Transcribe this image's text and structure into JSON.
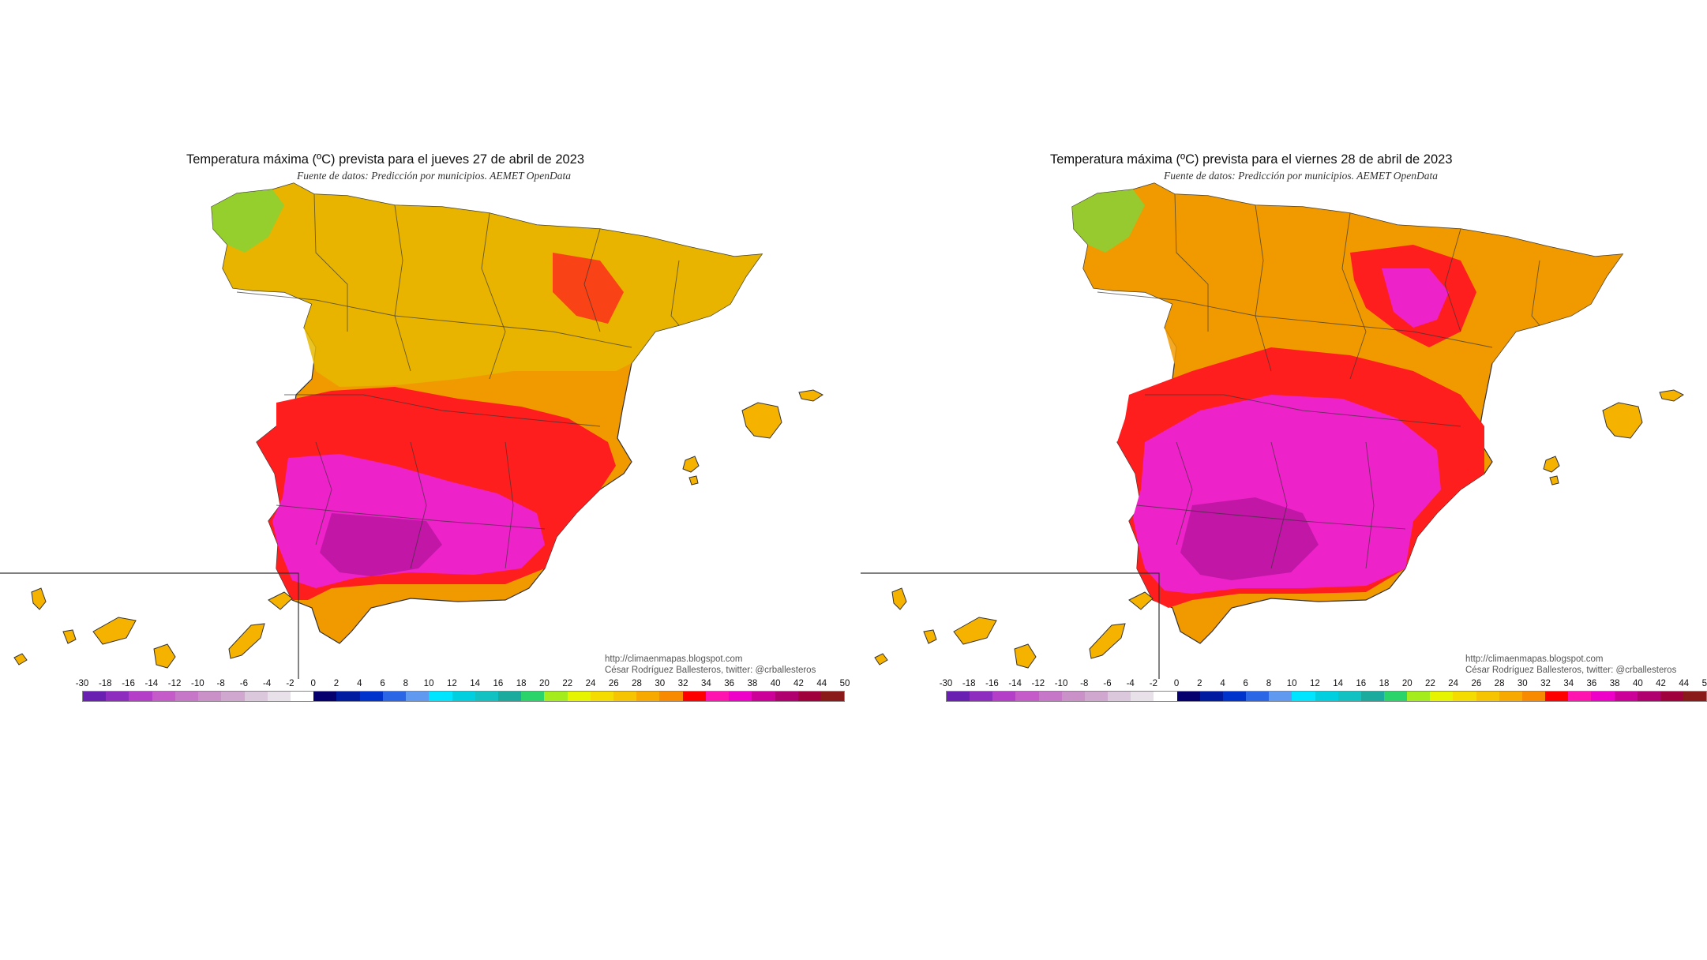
{
  "panels": [
    {
      "title": "Temperatura máxima (ºC) prevista para el jueves 27 de abril de 2023",
      "subtitle": "Fuente de datos: Predicción por municipios. AEMET OpenData",
      "credit_url": "http://climaenmapas.blogspot.com",
      "credit_author": "César Rodríguez Ballesteros, twitter: @crballesteros",
      "day": "jueves 27 de abril de 2023"
    },
    {
      "title": "Temperatura máxima (ºC) prevista para el viernes 28 de abril de 2023",
      "subtitle": "Fuente de datos: Predicción por municipios. AEMET OpenData",
      "credit_url": "http://climaenmapas.blogspot.com",
      "credit_author": "César Rodríguez Ballesteros, twitter: @crballesteros",
      "day": "viernes 28 de abril de 2023"
    }
  ],
  "legend": {
    "unit": "ºC",
    "tick_labels": [
      "-30",
      "-18",
      "-16",
      "-14",
      "-12",
      "-10",
      "-8",
      "-6",
      "-4",
      "-2",
      "0",
      "2",
      "4",
      "6",
      "8",
      "10",
      "12",
      "14",
      "16",
      "18",
      "20",
      "22",
      "24",
      "26",
      "28",
      "30",
      "32",
      "34",
      "36",
      "38",
      "40",
      "42",
      "44",
      "50"
    ],
    "colors": [
      "#6a1fb3",
      "#8f2cc0",
      "#b43ec8",
      "#c55ac9",
      "#c777c8",
      "#c991c7",
      "#d0a8cf",
      "#dcc8dc",
      "#e9e1ea",
      "#ffffff",
      "#06006e",
      "#001aa0",
      "#0033cc",
      "#2b66e6",
      "#5f9af0",
      "#00e5ff",
      "#00cfe0",
      "#12c2c2",
      "#1bab9e",
      "#2bd36b",
      "#a4ec1c",
      "#e6f400",
      "#f4dc00",
      "#f6c400",
      "#f8a900",
      "#f88a00",
      "#ff0000",
      "#ff14b0",
      "#ee00c8",
      "#cc0099",
      "#b00070",
      "#a0003c",
      "#8a1a1a"
    ]
  },
  "zones": {
    "northwest": "#7fd63a",
    "north": "#e6b800",
    "center": "#f19a00",
    "hot": "#ff1e1e",
    "very_hot": "#ee22c9",
    "hottest": "#b7149f",
    "islands": "#f5b300"
  }
}
